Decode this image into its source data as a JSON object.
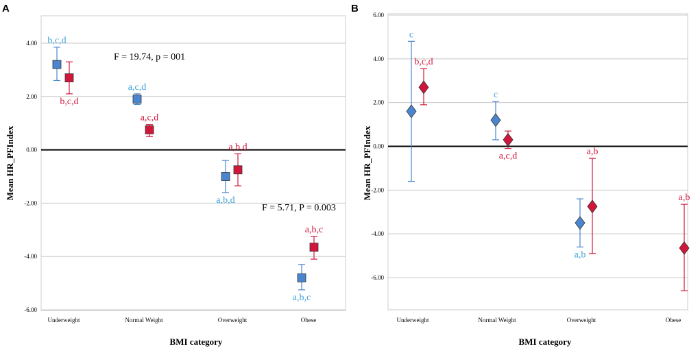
{
  "chart_data": [
    {
      "panel": "A",
      "type": "scatter",
      "marker": "square",
      "xlabel": "BMI category",
      "ylabel": "Mean HR_PFIndex",
      "ylim": [
        -6,
        5
      ],
      "yticks": [
        "4.00",
        "2.00",
        "0.00",
        "-2.00",
        "-4.00",
        "-6.00"
      ],
      "categories": [
        "Underweight",
        "Normal Weight",
        "Overweight",
        "Obese"
      ],
      "colors": {
        "blue": "#4a86d0",
        "red": "#d1163b",
        "blue_text": "#3aa0d8",
        "red_text": "#d1163b"
      },
      "series": [
        {
          "name": "blue",
          "mean": [
            3.2,
            1.9,
            -1.0,
            -4.8
          ],
          "lower": [
            2.6,
            1.7,
            -1.6,
            -5.25
          ],
          "upper": [
            3.85,
            2.1,
            -0.4,
            -4.3
          ],
          "labels": [
            "b,c,d",
            "a,c,d",
            "a,b,d",
            "a,b,c"
          ]
        },
        {
          "name": "red",
          "mean": [
            2.7,
            0.75,
            -0.75,
            -3.65
          ],
          "lower": [
            2.1,
            0.5,
            -1.35,
            -4.1
          ],
          "upper": [
            3.3,
            0.95,
            -0.15,
            -3.25
          ],
          "labels": [
            "b,c,d",
            "a,c,d",
            "a,b,d",
            "a,b,c"
          ]
        }
      ],
      "annotations": [
        "F = 19.74, p = 001",
        "F = 5.71, P = 0.003"
      ]
    },
    {
      "panel": "B",
      "type": "scatter",
      "marker": "diamond",
      "xlabel": "BMI category",
      "ylabel": "Mean HR_PFIndex",
      "ylim": [
        -6.9,
        6.0
      ],
      "yticks": [
        "6.00",
        "4.00",
        "2.00",
        "0.00",
        "-2.00",
        "-4.00",
        "-6.00"
      ],
      "categories": [
        "Underweight",
        "Normal Weight",
        "Overweight",
        "Obese"
      ],
      "colors": {
        "blue": "#4a86d0",
        "red": "#d1163b",
        "blue_text": "#3aa0d8",
        "red_text": "#d1163b"
      },
      "series": [
        {
          "name": "blue",
          "mean": [
            1.6,
            1.2,
            -3.5,
            null
          ],
          "lower": [
            -1.6,
            0.3,
            -4.6,
            null
          ],
          "upper": [
            4.8,
            2.05,
            -2.4,
            null
          ],
          "labels": [
            "c",
            "c",
            "a,b",
            ""
          ]
        },
        {
          "name": "red",
          "mean": [
            2.7,
            0.3,
            -2.75,
            -4.65
          ],
          "lower": [
            1.9,
            -0.1,
            -4.9,
            -6.6
          ],
          "upper": [
            3.55,
            0.7,
            -0.55,
            -2.65
          ],
          "labels": [
            "b,c,d",
            "a,c,d",
            "a,b",
            "a,b"
          ]
        }
      ]
    }
  ]
}
